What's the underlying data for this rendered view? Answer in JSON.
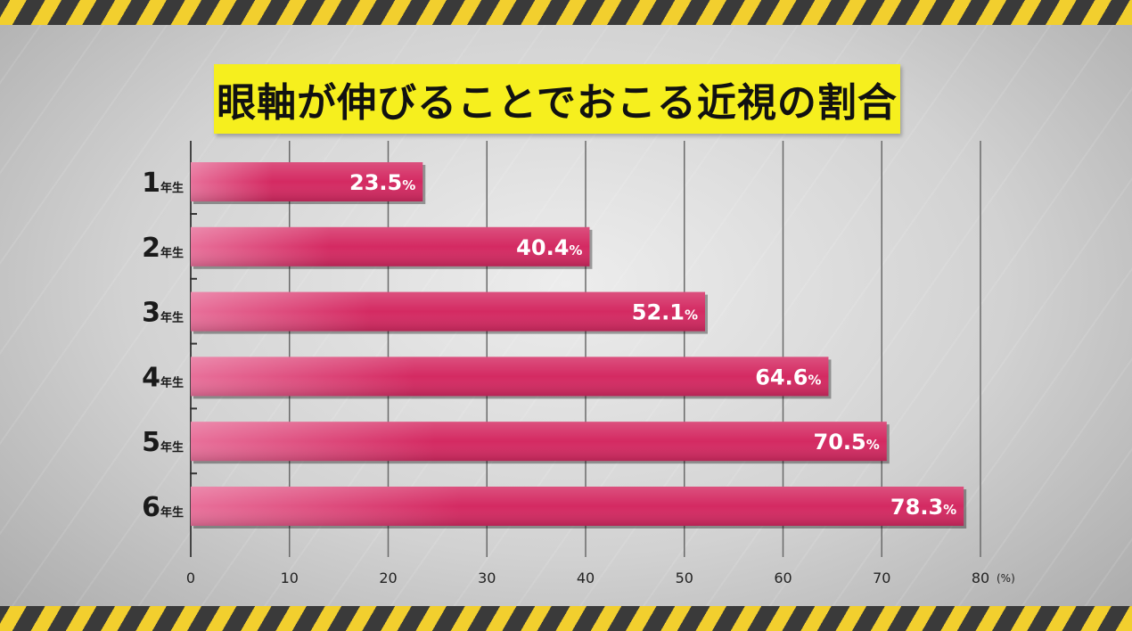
{
  "chart_data": {
    "type": "bar",
    "orientation": "horizontal",
    "title": "眼軸が伸びることでおこる近視の割合",
    "categories": [
      "1",
      "2",
      "3",
      "4",
      "5",
      "6"
    ],
    "category_suffix": "年生",
    "values": [
      23.5,
      40.4,
      52.1,
      64.6,
      70.5,
      78.3
    ],
    "value_labels": [
      "23.5",
      "40.4",
      "52.1",
      "64.6",
      "70.5",
      "78.3"
    ],
    "value_suffix": "%",
    "xlim": [
      0,
      80
    ],
    "xticks": [
      0,
      10,
      20,
      30,
      40,
      50,
      60,
      70,
      80
    ],
    "x_unit": "(%)",
    "grid": true,
    "colors": {
      "bar": "#d42a62",
      "bar_light": "#e8709a",
      "title_bg": "#f6ef1e"
    }
  }
}
